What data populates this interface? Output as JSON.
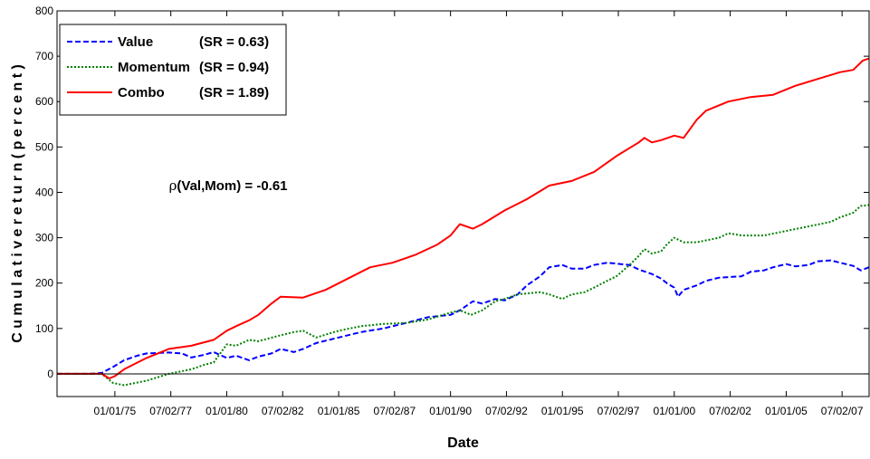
{
  "chart_data": {
    "type": "line",
    "title": "",
    "xlabel": "Date",
    "ylabel": "C u m u l a t i v e   r e t u r n   ( p e r c e n t )",
    "xlim": [
      "1972-06-01",
      "2008-09-15"
    ],
    "ylim": [
      -50,
      800
    ],
    "grid": false,
    "legend_position": "top-left",
    "y_ticks": [
      0,
      100,
      200,
      300,
      400,
      500,
      600,
      700,
      800
    ],
    "x_ticks": [
      {
        "date": "1975-01-01",
        "label": "01/01/75"
      },
      {
        "date": "1977-07-02",
        "label": "07/02/77"
      },
      {
        "date": "1980-01-01",
        "label": "01/01/80"
      },
      {
        "date": "1982-07-02",
        "label": "07/02/82"
      },
      {
        "date": "1985-01-01",
        "label": "01/01/85"
      },
      {
        "date": "1987-07-02",
        "label": "07/02/87"
      },
      {
        "date": "1990-01-01",
        "label": "01/01/90"
      },
      {
        "date": "1992-07-02",
        "label": "07/02/92"
      },
      {
        "date": "1995-01-01",
        "label": "01/01/95"
      },
      {
        "date": "1997-07-02",
        "label": "07/02/97"
      },
      {
        "date": "2000-01-01",
        "label": "01/01/00"
      },
      {
        "date": "2002-07-02",
        "label": "07/02/02"
      },
      {
        "date": "2005-01-01",
        "label": "01/01/05"
      },
      {
        "date": "2007-07-02",
        "label": "07/02/07"
      }
    ],
    "series": [
      {
        "name": "Value",
        "sr_label": "(SR = 0.63)",
        "color": "#0000ff",
        "dash": "dashed",
        "points": [
          [
            "1972-06-01",
            0
          ],
          [
            "1973-12-01",
            0
          ],
          [
            "1974-06-01",
            2
          ],
          [
            "1974-12-01",
            15
          ],
          [
            "1975-06-01",
            30
          ],
          [
            "1976-01-01",
            40
          ],
          [
            "1976-06-01",
            45
          ],
          [
            "1977-06-01",
            47
          ],
          [
            "1978-01-01",
            45
          ],
          [
            "1978-06-01",
            36
          ],
          [
            "1979-01-01",
            42
          ],
          [
            "1979-06-01",
            48
          ],
          [
            "1980-01-01",
            35
          ],
          [
            "1980-06-01",
            40
          ],
          [
            "1981-01-01",
            30
          ],
          [
            "1981-06-01",
            38
          ],
          [
            "1982-01-01",
            45
          ],
          [
            "1982-06-01",
            55
          ],
          [
            "1983-01-01",
            48
          ],
          [
            "1983-06-01",
            55
          ],
          [
            "1984-01-01",
            68
          ],
          [
            "1985-01-01",
            80
          ],
          [
            "1986-01-01",
            92
          ],
          [
            "1987-01-01",
            100
          ],
          [
            "1988-01-01",
            112
          ],
          [
            "1989-01-01",
            125
          ],
          [
            "1990-01-01",
            130
          ],
          [
            "1990-06-01",
            140
          ],
          [
            "1991-01-01",
            160
          ],
          [
            "1991-06-01",
            155
          ],
          [
            "1992-01-01",
            165
          ],
          [
            "1992-06-01",
            162
          ],
          [
            "1993-01-01",
            175
          ],
          [
            "1993-06-01",
            195
          ],
          [
            "1994-01-01",
            215
          ],
          [
            "1994-06-01",
            235
          ],
          [
            "1995-01-01",
            240
          ],
          [
            "1995-06-01",
            232
          ],
          [
            "1996-01-01",
            232
          ],
          [
            "1996-06-01",
            240
          ],
          [
            "1997-01-01",
            245
          ],
          [
            "1997-06-01",
            243
          ],
          [
            "1998-01-01",
            240
          ],
          [
            "1998-06-01",
            230
          ],
          [
            "1999-01-01",
            220
          ],
          [
            "1999-06-01",
            210
          ],
          [
            "1999-09-01",
            200
          ],
          [
            "2000-01-01",
            190
          ],
          [
            "2000-03-01",
            170
          ],
          [
            "2000-06-01",
            185
          ],
          [
            "2001-01-01",
            195
          ],
          [
            "2001-06-01",
            205
          ],
          [
            "2002-01-01",
            212
          ],
          [
            "2003-01-01",
            215
          ],
          [
            "2003-06-01",
            225
          ],
          [
            "2004-01-01",
            228
          ],
          [
            "2004-06-01",
            235
          ],
          [
            "2005-01-01",
            242
          ],
          [
            "2005-06-01",
            237
          ],
          [
            "2006-01-01",
            240
          ],
          [
            "2006-06-01",
            248
          ],
          [
            "2007-01-01",
            250
          ],
          [
            "2007-06-01",
            245
          ],
          [
            "2008-01-01",
            238
          ],
          [
            "2008-05-01",
            228
          ],
          [
            "2008-09-15",
            235
          ]
        ]
      },
      {
        "name": "Momentum",
        "sr_label": "(SR = 0.94)",
        "color": "#008000",
        "dash": "dotted",
        "points": [
          [
            "1972-06-01",
            0
          ],
          [
            "1974-06-01",
            0
          ],
          [
            "1974-12-01",
            -20
          ],
          [
            "1975-06-01",
            -25
          ],
          [
            "1976-06-01",
            -15
          ],
          [
            "1977-06-01",
            0
          ],
          [
            "1978-06-01",
            10
          ],
          [
            "1979-01-01",
            20
          ],
          [
            "1979-06-01",
            25
          ],
          [
            "1980-01-01",
            65
          ],
          [
            "1980-06-01",
            62
          ],
          [
            "1981-01-01",
            75
          ],
          [
            "1981-06-01",
            72
          ],
          [
            "1982-06-01",
            85
          ],
          [
            "1983-01-01",
            92
          ],
          [
            "1983-06-01",
            95
          ],
          [
            "1984-01-01",
            80
          ],
          [
            "1985-01-01",
            95
          ],
          [
            "1986-01-01",
            105
          ],
          [
            "1987-01-01",
            110
          ],
          [
            "1988-01-01",
            112
          ],
          [
            "1989-01-01",
            120
          ],
          [
            "1990-01-01",
            135
          ],
          [
            "1990-06-01",
            140
          ],
          [
            "1990-12-01",
            130
          ],
          [
            "1991-06-01",
            140
          ],
          [
            "1992-01-01",
            160
          ],
          [
            "1992-06-01",
            165
          ],
          [
            "1993-01-01",
            175
          ],
          [
            "1994-01-01",
            180
          ],
          [
            "1994-06-01",
            175
          ],
          [
            "1995-01-01",
            165
          ],
          [
            "1995-06-01",
            175
          ],
          [
            "1996-01-01",
            180
          ],
          [
            "1996-06-01",
            190
          ],
          [
            "1997-01-01",
            205
          ],
          [
            "1997-06-01",
            215
          ],
          [
            "1998-01-01",
            240
          ],
          [
            "1998-06-01",
            260
          ],
          [
            "1998-09-01",
            275
          ],
          [
            "1999-01-01",
            265
          ],
          [
            "1999-06-01",
            270
          ],
          [
            "1999-09-01",
            285
          ],
          [
            "2000-01-01",
            300
          ],
          [
            "2000-06-01",
            290
          ],
          [
            "2001-01-01",
            290
          ],
          [
            "2002-01-01",
            300
          ],
          [
            "2002-06-01",
            310
          ],
          [
            "2003-01-01",
            305
          ],
          [
            "2004-01-01",
            305
          ],
          [
            "2005-01-01",
            315
          ],
          [
            "2006-01-01",
            325
          ],
          [
            "2007-01-01",
            335
          ],
          [
            "2007-06-01",
            345
          ],
          [
            "2008-01-01",
            355
          ],
          [
            "2008-05-01",
            370
          ],
          [
            "2008-09-15",
            372
          ]
        ]
      },
      {
        "name": "Combo",
        "sr_label": "(SR = 1.89)",
        "color": "#ff0000",
        "dash": "solid",
        "points": [
          [
            "1972-06-01",
            0
          ],
          [
            "1974-06-01",
            0
          ],
          [
            "1974-10-01",
            -10
          ],
          [
            "1975-01-01",
            -5
          ],
          [
            "1975-06-01",
            10
          ],
          [
            "1976-06-01",
            35
          ],
          [
            "1977-06-01",
            55
          ],
          [
            "1978-06-01",
            62
          ],
          [
            "1979-06-01",
            75
          ],
          [
            "1980-01-01",
            95
          ],
          [
            "1980-06-01",
            105
          ],
          [
            "1981-01-01",
            118
          ],
          [
            "1981-06-01",
            130
          ],
          [
            "1982-01-01",
            155
          ],
          [
            "1982-06-01",
            170
          ],
          [
            "1983-06-01",
            168
          ],
          [
            "1984-06-01",
            185
          ],
          [
            "1985-06-01",
            210
          ],
          [
            "1986-06-01",
            235
          ],
          [
            "1987-06-01",
            245
          ],
          [
            "1988-06-01",
            262
          ],
          [
            "1989-06-01",
            285
          ],
          [
            "1990-01-01",
            305
          ],
          [
            "1990-06-01",
            330
          ],
          [
            "1991-01-01",
            320
          ],
          [
            "1991-06-01",
            330
          ],
          [
            "1992-06-01",
            360
          ],
          [
            "1993-06-01",
            385
          ],
          [
            "1994-06-01",
            415
          ],
          [
            "1995-06-01",
            425
          ],
          [
            "1996-06-01",
            445
          ],
          [
            "1997-06-01",
            480
          ],
          [
            "1998-06-01",
            510
          ],
          [
            "1998-09-01",
            520
          ],
          [
            "1999-01-01",
            510
          ],
          [
            "1999-06-01",
            515
          ],
          [
            "2000-01-01",
            525
          ],
          [
            "2000-06-01",
            520
          ],
          [
            "2001-01-01",
            560
          ],
          [
            "2001-06-01",
            580
          ],
          [
            "2002-06-01",
            600
          ],
          [
            "2003-06-01",
            610
          ],
          [
            "2004-06-01",
            615
          ],
          [
            "2005-06-01",
            635
          ],
          [
            "2006-06-01",
            650
          ],
          [
            "2007-06-01",
            665
          ],
          [
            "2008-01-01",
            670
          ],
          [
            "2008-06-01",
            690
          ],
          [
            "2008-09-15",
            695
          ]
        ]
      }
    ],
    "annotations": [
      {
        "text": "(Val,Mom) = -0.61",
        "symbol": "ρ",
        "x": "1977-06-01",
        "y": 405
      }
    ]
  }
}
